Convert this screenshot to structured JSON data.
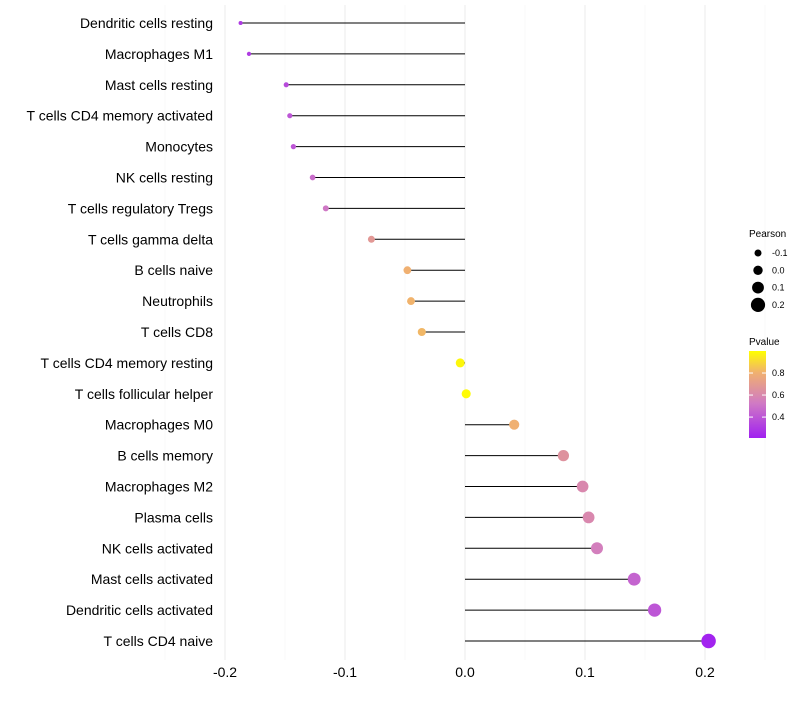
{
  "chart_data": {
    "type": "lollipop",
    "title": "",
    "xlabel": "",
    "ylabel": "",
    "xlim": [
      -0.2,
      0.2
    ],
    "xticks": [
      "-0.2",
      "-0.1",
      "0.0",
      "0.1",
      "0.2"
    ],
    "xtick_values": [
      -0.2,
      -0.1,
      0.0,
      0.1,
      0.2
    ],
    "grid": true,
    "categories": [
      "Dendritic cells resting",
      "Macrophages M1",
      "Mast cells resting",
      "T cells CD4 memory activated",
      "Monocytes",
      "NK cells resting",
      "T cells regulatory  Tregs",
      "T cells gamma delta",
      "B cells naive",
      "Neutrophils",
      "T cells CD8",
      "T cells CD4 memory resting",
      "T cells follicular helper",
      "Macrophages M0",
      "B cells memory",
      "Macrophages M2",
      "Plasma cells",
      "NK cells activated",
      "Mast cells activated",
      "Dendritic cells activated",
      "T cells CD4 naive"
    ],
    "pearson": [
      -0.187,
      -0.18,
      -0.149,
      -0.146,
      -0.143,
      -0.127,
      -0.116,
      -0.078,
      -0.048,
      -0.045,
      -0.036,
      -0.004,
      0.001,
      0.041,
      0.082,
      0.098,
      0.103,
      0.11,
      0.141,
      0.158,
      0.203
    ],
    "pvalue": [
      0.3,
      0.31,
      0.36,
      0.4,
      0.4,
      0.48,
      0.52,
      0.68,
      0.8,
      0.81,
      0.82,
      0.98,
      0.99,
      0.8,
      0.65,
      0.6,
      0.6,
      0.55,
      0.45,
      0.4,
      0.22
    ],
    "legend_size": {
      "title": "Pearson",
      "labels": [
        "-0.1",
        "0.0",
        "0.1",
        "0.2"
      ],
      "values": [
        -0.1,
        0.0,
        0.1,
        0.2
      ],
      "placement": "right"
    },
    "legend_color": {
      "title": "Pvalue",
      "labels": [
        "0.8",
        "0.6",
        "0.4"
      ],
      "values": [
        0.8,
        0.6,
        0.4
      ],
      "range": [
        0.21,
        1.0
      ],
      "placement": "right"
    },
    "colors": {
      "low": "#a020f0",
      "mid1": "#d07ac4",
      "mid2": "#f0b070",
      "high": "#ffff00",
      "stem": "#000000",
      "grid": "#ebebeb"
    }
  }
}
